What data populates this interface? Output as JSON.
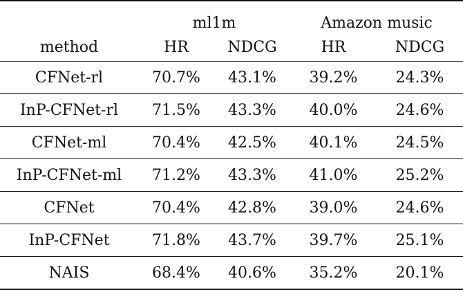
{
  "table": {
    "header": {
      "groups": [
        "ml1m",
        "Amazon music"
      ],
      "method_label": "method",
      "metrics": [
        "HR",
        "NDCG",
        "HR",
        "NDCG"
      ]
    },
    "rows": [
      {
        "method": "CFNet-rl",
        "values": [
          "70.7%",
          "43.1%",
          "39.2%",
          "24.3%"
        ],
        "bold": [
          false,
          false,
          false,
          false
        ]
      },
      {
        "method": "InP-CFNet-rl",
        "values": [
          "71.5%",
          "43.3%",
          "40.0%",
          "24.6%"
        ],
        "bold": [
          true,
          true,
          true,
          true
        ]
      },
      {
        "method": "CFNet-ml",
        "values": [
          "70.4%",
          "42.5%",
          "40.1%",
          "24.5%"
        ],
        "bold": [
          false,
          false,
          false,
          false
        ]
      },
      {
        "method": "InP-CFNet-ml",
        "values": [
          "71.2%",
          "43.3%",
          "41.0%",
          "25.2%"
        ],
        "bold": [
          true,
          true,
          true,
          true
        ]
      },
      {
        "method": "CFNet",
        "values": [
          "70.4%",
          "42.8%",
          "39.0%",
          "24.6%"
        ],
        "bold": [
          false,
          false,
          false,
          false
        ]
      },
      {
        "method": "InP-CFNet",
        "values": [
          "71.8%",
          "43.7%",
          "39.7%",
          "25.1%"
        ],
        "bold": [
          true,
          true,
          true,
          true
        ]
      },
      {
        "method": "NAIS",
        "values": [
          "68.4%",
          "40.6%",
          "35.2%",
          "20.1%"
        ],
        "bold": [
          false,
          false,
          false,
          false
        ]
      }
    ]
  }
}
